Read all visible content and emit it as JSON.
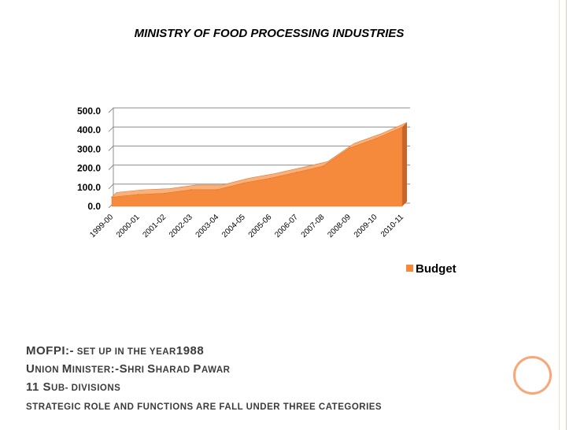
{
  "slide": {
    "lines": [
      {
        "parts": [
          {
            "t": "MOFPI:-",
            "s": "big"
          },
          {
            "t": " set up in the year",
            "s": "sc"
          },
          {
            "t": "1988",
            "s": "big"
          }
        ]
      },
      {
        "parts": [
          {
            "t": "U",
            "s": "big"
          },
          {
            "t": "nion ",
            "s": "sc"
          },
          {
            "t": "M",
            "s": "big"
          },
          {
            "t": "inister",
            "s": "sc"
          },
          {
            "t": ":-S",
            "s": "big"
          },
          {
            "t": "hri ",
            "s": "sc"
          },
          {
            "t": "S",
            "s": "big"
          },
          {
            "t": "harad ",
            "s": "sc"
          },
          {
            "t": "P",
            "s": "big"
          },
          {
            "t": "awar",
            "s": "sc"
          }
        ]
      },
      {
        "parts": [
          {
            "t": "11 S",
            "s": "big"
          },
          {
            "t": "ub- divisions",
            "s": "sc"
          }
        ]
      },
      {
        "parts": [
          {
            "t": "strategic role and functions are fall under three categories",
            "s": "sc"
          }
        ]
      }
    ]
  },
  "colors": {
    "area_fill": "#f58a3c",
    "area_top": "#fbb07a",
    "area_side": "#c8642a",
    "grid": "#8c8c8c",
    "accent": "#f6a87a"
  },
  "chart_data": {
    "type": "area",
    "title": "MINISTRY OF FOOD PROCESSING INDUSTRIES",
    "categories": [
      "1999-00",
      "2000-01",
      "2001-02",
      "2002-03",
      "2003-04",
      "2004-05",
      "2005-06",
      "2006-07",
      "2007-08",
      "2008-09",
      "2009-10",
      "2010-11"
    ],
    "series": [
      {
        "name": "Budget",
        "values": [
          48,
          62,
          68,
          87,
          87,
          122,
          147,
          178,
          210,
          305,
          355,
          415
        ]
      }
    ],
    "yticks": [
      "0.0",
      "100.0",
      "200.0",
      "300.0",
      "400.0",
      "500.0"
    ],
    "ylim": [
      0,
      500
    ],
    "grid": true,
    "legend_position": "right",
    "three_d": true
  }
}
